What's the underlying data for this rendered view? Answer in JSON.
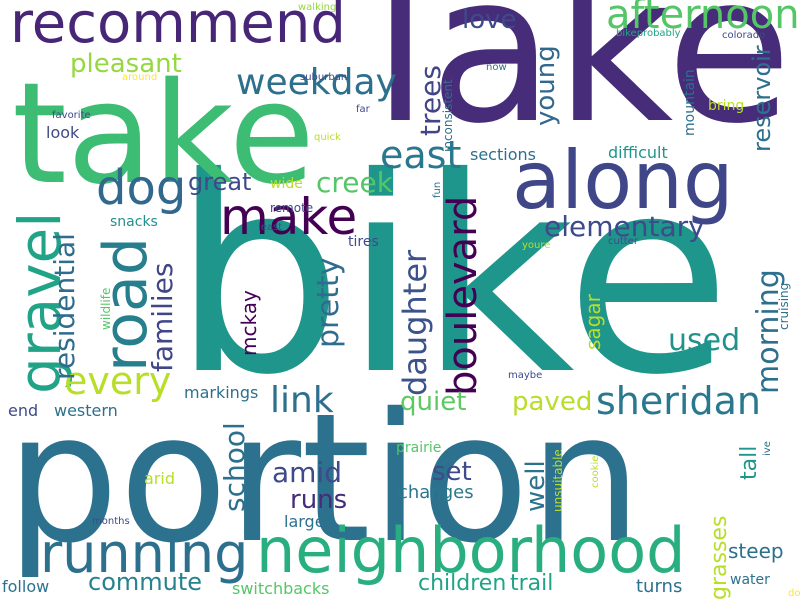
{
  "background": "#ffffff",
  "palette": [
    "#440154",
    "#482677",
    "#3f4788",
    "#2d708e",
    "#238a8d",
    "#1f968b",
    "#29af7f",
    "#55c667",
    "#95d840",
    "#b8de29",
    "#fde725"
  ],
  "words": [
    {
      "text": "bike",
      "color": "#1f968b"
    },
    {
      "text": "lake",
      "color": "#472c7a"
    },
    {
      "text": "portion",
      "color": "#2c728e"
    },
    {
      "text": "take",
      "color": "#3dbc74"
    },
    {
      "text": "along",
      "color": "#3f4788"
    },
    {
      "text": "neighborhood",
      "color": "#29af7f"
    },
    {
      "text": "running",
      "color": "#2d708e"
    },
    {
      "text": "recommend",
      "color": "#482677"
    },
    {
      "text": "road",
      "color": "#277f8e"
    },
    {
      "text": "gravel",
      "color": "#20a386"
    },
    {
      "text": "dog",
      "color": "#31688e"
    },
    {
      "text": "make",
      "color": "#440154"
    },
    {
      "text": "boulevard",
      "color": "#440154"
    },
    {
      "text": "afternoon",
      "color": "#55c667"
    },
    {
      "text": "every",
      "color": "#b8de29"
    },
    {
      "text": "weekday",
      "color": "#2d708e"
    },
    {
      "text": "east",
      "color": "#2a788e"
    },
    {
      "text": "sheridan",
      "color": "#2a788e"
    },
    {
      "text": "link",
      "color": "#2d708e"
    },
    {
      "text": "daughter",
      "color": "#3b528b"
    },
    {
      "text": "elementary",
      "color": "#3e4a89"
    },
    {
      "text": "creek",
      "color": "#55c667"
    },
    {
      "text": "families",
      "color": "#404688"
    },
    {
      "text": "residential",
      "color": "#2f6c8e"
    },
    {
      "text": "pretty",
      "color": "#2f6c8e"
    },
    {
      "text": "morning",
      "color": "#2d708e"
    },
    {
      "text": "used",
      "color": "#21918c"
    },
    {
      "text": "paved",
      "color": "#b8de29"
    },
    {
      "text": "quiet",
      "color": "#5ec962"
    },
    {
      "text": "love",
      "color": "#3e4a89"
    },
    {
      "text": "trees",
      "color": "#414487"
    },
    {
      "text": "young",
      "color": "#31688e"
    },
    {
      "text": "great",
      "color": "#3e4a89"
    },
    {
      "text": "pleasant",
      "color": "#95d840"
    },
    {
      "text": "amid",
      "color": "#3e4a89"
    },
    {
      "text": "school",
      "color": "#2d708e"
    },
    {
      "text": "runs",
      "color": "#472c7a"
    },
    {
      "text": "set",
      "color": "#3e4a89"
    },
    {
      "text": "well",
      "color": "#2c728e"
    },
    {
      "text": "reservoir",
      "color": "#2d708e"
    },
    {
      "text": "commute",
      "color": "#26828e"
    },
    {
      "text": "trail",
      "color": "#20a386"
    },
    {
      "text": "children",
      "color": "#20a386"
    },
    {
      "text": "grasses",
      "color": "#b8de29"
    },
    {
      "text": "mckay",
      "color": "#440154"
    },
    {
      "text": "tall",
      "color": "#1f968b"
    },
    {
      "text": "steep",
      "color": "#2d708e"
    },
    {
      "text": "sagar",
      "color": "#b8de29"
    },
    {
      "text": "changes",
      "color": "#2a788e"
    },
    {
      "text": "sections",
      "color": "#2d708e"
    },
    {
      "text": "difficult",
      "color": "#1f968b"
    },
    {
      "text": "western",
      "color": "#2d708e"
    },
    {
      "text": "end",
      "color": "#3e4a89"
    },
    {
      "text": "markings",
      "color": "#2d708e"
    },
    {
      "text": "switchbacks",
      "color": "#55c667"
    },
    {
      "text": "turns",
      "color": "#2c728e"
    },
    {
      "text": "water",
      "color": "#2c728e"
    },
    {
      "text": "follow",
      "color": "#2c728e"
    },
    {
      "text": "large",
      "color": "#2c728e"
    },
    {
      "text": "prairie",
      "color": "#55c667"
    },
    {
      "text": "arid",
      "color": "#b8de29"
    },
    {
      "text": "look",
      "color": "#3e4a89"
    },
    {
      "text": "snacks",
      "color": "#21918c"
    },
    {
      "text": "tires",
      "color": "#3e4a89"
    },
    {
      "text": "wide",
      "color": "#b8de29"
    },
    {
      "text": "bring",
      "color": "#b8de29"
    },
    {
      "text": "mountain",
      "color": "#2d708e"
    },
    {
      "text": "inconsistent",
      "color": "#2d708e"
    },
    {
      "text": "cruising",
      "color": "#2d708e"
    },
    {
      "text": "unsuitable",
      "color": "#b8de29"
    },
    {
      "text": "wildlife",
      "color": "#55c667"
    },
    {
      "text": "remote",
      "color": "#3e4a89"
    },
    {
      "text": "suburban",
      "color": "#3e4a89"
    },
    {
      "text": "walking",
      "color": "#95d840"
    },
    {
      "text": "bikeprobably",
      "color": "#20a386"
    },
    {
      "text": "colorado",
      "color": "#3e4a89"
    },
    {
      "text": "around",
      "color": "#fde725"
    },
    {
      "text": "favorite",
      "color": "#3e4a89"
    },
    {
      "text": "far",
      "color": "#3e4a89"
    },
    {
      "text": "now",
      "color": "#2c728e"
    },
    {
      "text": "quick",
      "color": "#b8de29"
    },
    {
      "text": "least",
      "color": "#3e4a89"
    },
    {
      "text": "fun",
      "color": "#2d708e"
    },
    {
      "text": "youre",
      "color": "#b8de29"
    },
    {
      "text": "cutter",
      "color": "#3e4a89"
    },
    {
      "text": "maybe",
      "color": "#3e4a89"
    },
    {
      "text": "months",
      "color": "#3e4a89"
    },
    {
      "text": "cookie",
      "color": "#b8de29"
    },
    {
      "text": "ive",
      "color": "#2d708e"
    },
    {
      "text": "dont",
      "color": "#fde725"
    }
  ]
}
